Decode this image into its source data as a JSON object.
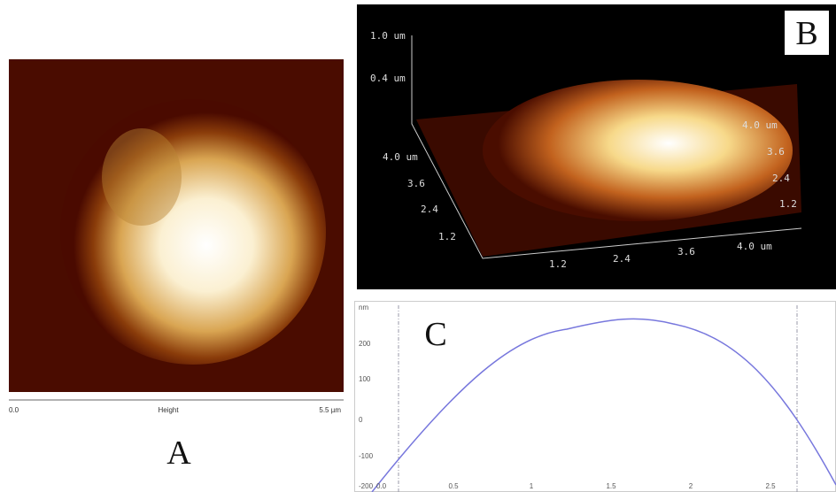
{
  "panel_a": {
    "label": "A",
    "scale_start": "0.0",
    "scale_title": "Height",
    "scale_end": "5.5 µm"
  },
  "panel_b": {
    "label": "B",
    "z_labels": [
      "1.0 um",
      "0.4 um"
    ],
    "left_labels": [
      "4.0 um",
      "3.6",
      "2.4",
      "1.2"
    ],
    "bottom_labels": [
      "1.2",
      "2.4",
      "3.6",
      "4.0 um"
    ],
    "right_labels": [
      "4.0 um",
      "3.6",
      "2.4",
      "1.2"
    ]
  },
  "panel_c": {
    "label": "C",
    "y_unit": "nm",
    "y_labels": [
      "200",
      "100",
      "0",
      "-100",
      "-200"
    ],
    "x_labels": [
      "0.0",
      "0.5",
      "1",
      "1.5",
      "2",
      "2.5"
    ]
  }
}
